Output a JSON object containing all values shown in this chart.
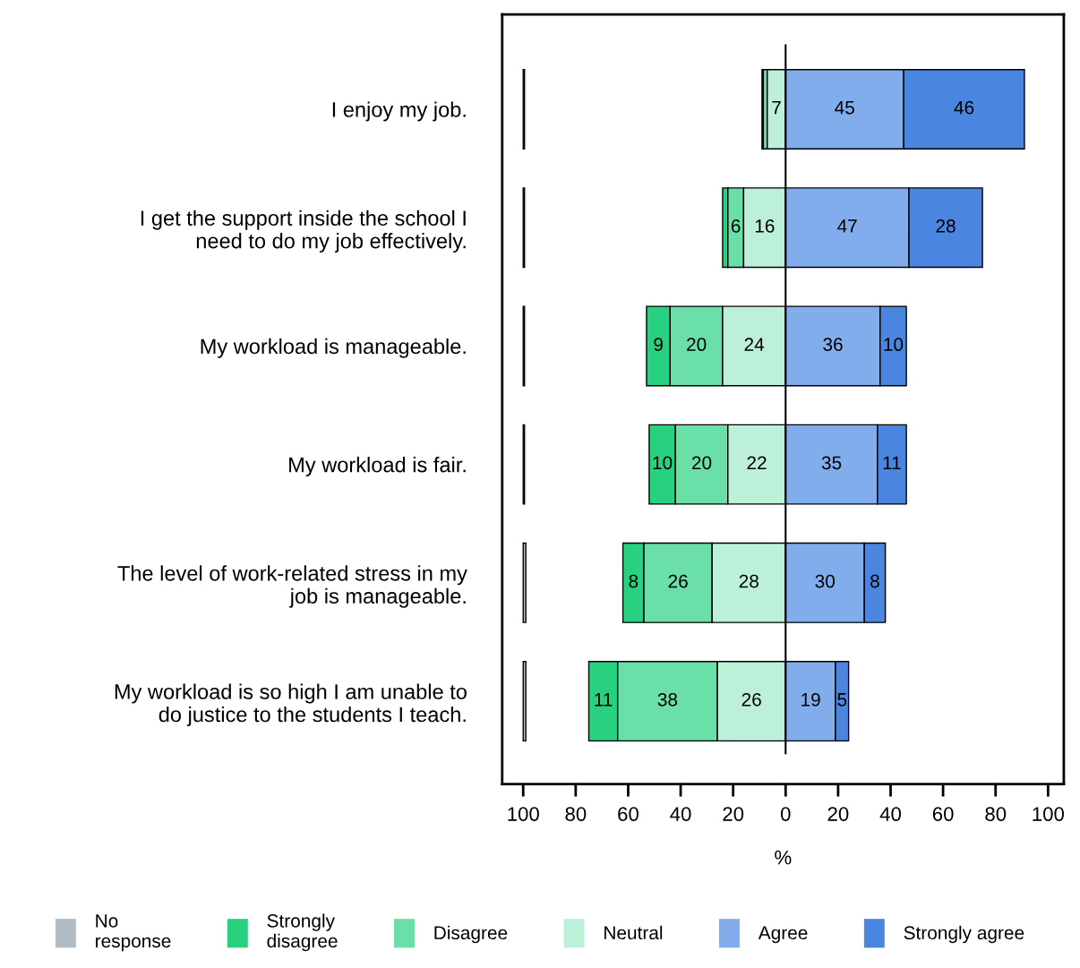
{
  "chart_data": {
    "type": "bar",
    "orientation": "horizontal",
    "xlabel": "%",
    "categories": [
      "I enjoy my job.",
      "I get the support inside the school I\nneed to do my job effectively.",
      "My workload is manageable.",
      "My workload is fair.",
      "The level of work-related stress in my\njob is manageable.",
      "My workload is so high I am unable to\ndo justice to the students I teach."
    ],
    "series": [
      {
        "name": "No\nresponse",
        "color": "#b0bbc4",
        "base": [
          -100,
          -100,
          -100,
          -100,
          -100,
          -100
        ],
        "values": [
          0.5,
          0.5,
          0.5,
          0.5,
          1,
          1
        ],
        "value_labels": [
          null,
          null,
          null,
          null,
          null,
          null
        ]
      },
      {
        "name": "Strongly\ndisagree",
        "color": "#27d17f",
        "base": [
          -9,
          -24,
          -53,
          -52,
          -62,
          -75
        ],
        "values": [
          0.5,
          2,
          9,
          10,
          8,
          11
        ],
        "value_labels": [
          null,
          null,
          "9",
          "10",
          "8",
          "11"
        ]
      },
      {
        "name": "Disagree",
        "color": "#6adfa8",
        "base": [
          -8.5,
          -22,
          -44,
          -42,
          -54,
          -64
        ],
        "values": [
          1.5,
          6,
          20,
          20,
          26,
          38
        ],
        "value_labels": [
          null,
          "6",
          "20",
          "20",
          "26",
          "38"
        ]
      },
      {
        "name": "Neutral",
        "color": "#bdf0d8",
        "base": [
          -7,
          -16,
          -24,
          -22,
          -28,
          -26
        ],
        "values": [
          7,
          16,
          24,
          22,
          28,
          26
        ],
        "value_labels": [
          "7",
          "16",
          "24",
          "22",
          "28",
          "26"
        ]
      },
      {
        "name": "Agree",
        "color": "#82adec",
        "base": [
          0,
          0,
          0,
          0,
          0,
          0
        ],
        "values": [
          45,
          47,
          36,
          35,
          30,
          19
        ],
        "value_labels": [
          "45",
          "47",
          "36",
          "35",
          "30",
          "19"
        ]
      },
      {
        "name": "Strongly agree",
        "color": "#4a86e0",
        "base": [
          45,
          47,
          36,
          35,
          30,
          19
        ],
        "values": [
          46,
          28,
          10,
          11,
          8,
          5
        ],
        "value_labels": [
          "46",
          "28",
          "10",
          "11",
          "8",
          "5"
        ]
      }
    ],
    "xlim": [
      -108,
      106
    ],
    "xticks": [
      {
        "value": -100,
        "label": "100"
      },
      {
        "value": -80,
        "label": "80"
      },
      {
        "value": -60,
        "label": "60"
      },
      {
        "value": -40,
        "label": "40"
      },
      {
        "value": -20,
        "label": "20"
      },
      0,
      20,
      40,
      60,
      80,
      100
    ],
    "ref_lines": [
      {
        "axis": "x",
        "value": 0
      }
    ],
    "grid": false,
    "legend": "bottom"
  }
}
